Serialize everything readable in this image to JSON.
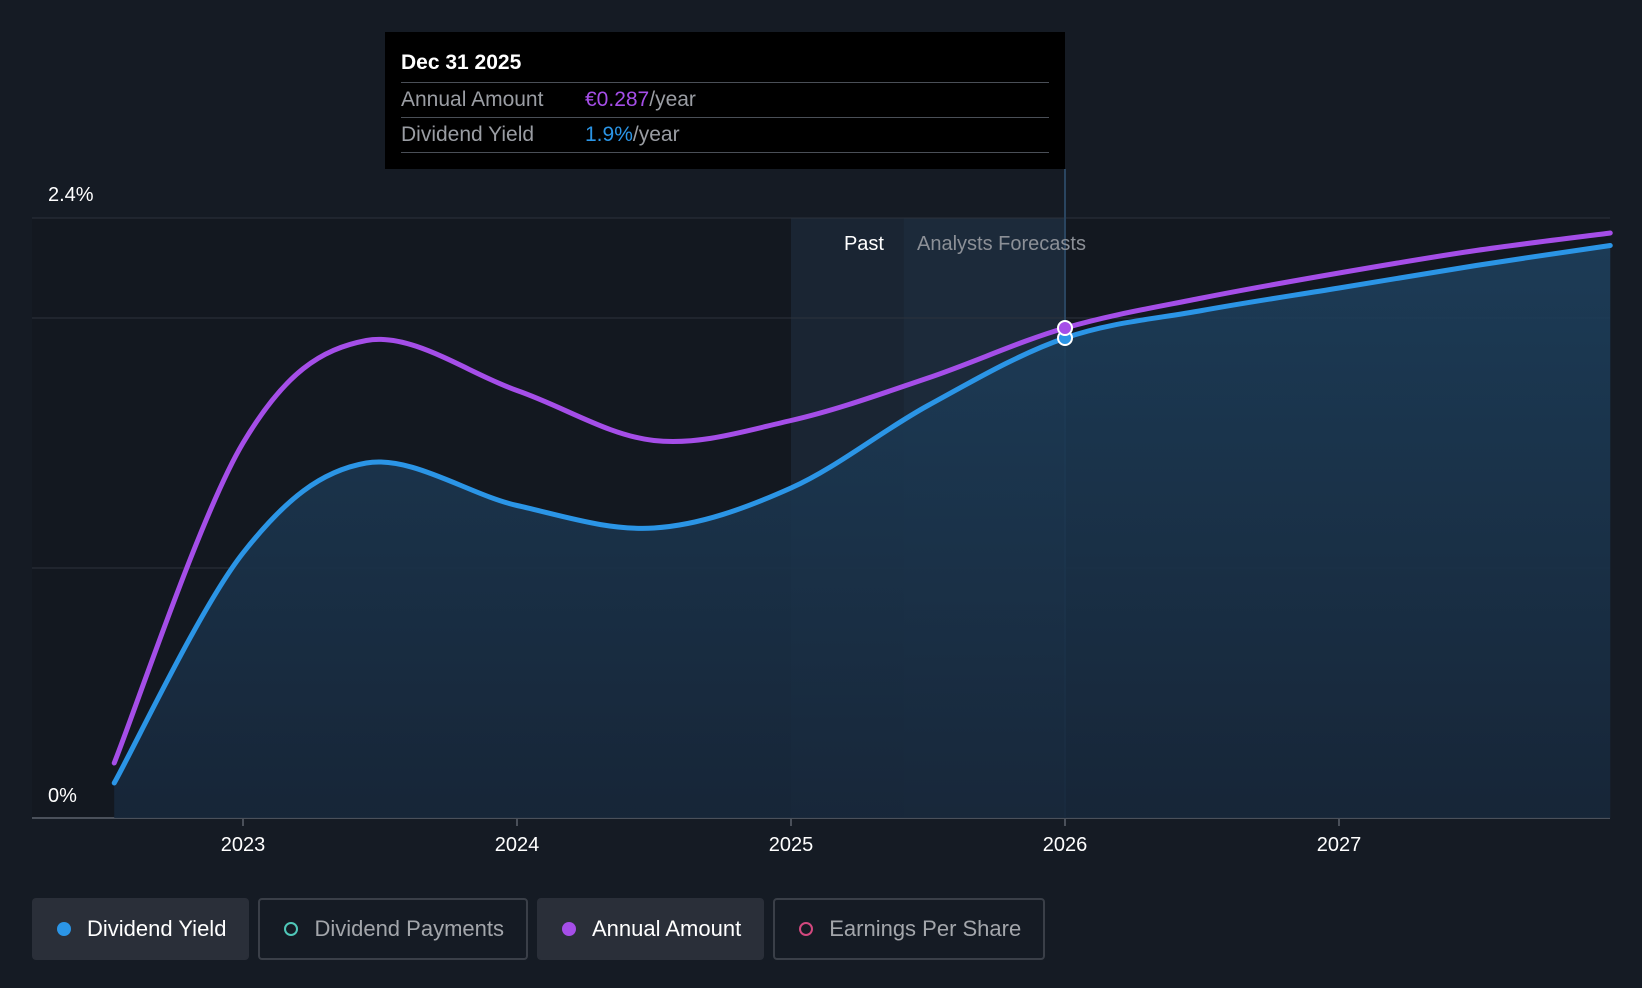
{
  "chart_data": {
    "type": "line",
    "x_ticks": [
      "2023",
      "2024",
      "2025",
      "2026",
      "2027"
    ],
    "y_ticks": [
      "0%",
      "2.4%"
    ],
    "ylim": [
      0,
      2.4
    ],
    "xlim": [
      2022.53,
      2027.99
    ],
    "grid": true,
    "region_labels": {
      "past": "Past",
      "forecast": "Analysts Forecasts"
    },
    "series": [
      {
        "name": "Dividend Yield",
        "color": "#2b95e6",
        "unit": "%",
        "x": [
          2022.53,
          2023.0,
          2023.45,
          2024.0,
          2024.5,
          2025.0,
          2025.5,
          2026.0,
          2026.5,
          2027.0,
          2027.5,
          2027.99
        ],
        "y": [
          0.14,
          1.06,
          1.42,
          1.25,
          1.16,
          1.32,
          1.65,
          1.92,
          2.03,
          2.12,
          2.21,
          2.29
        ]
      },
      {
        "name": "Annual Amount",
        "color": "#a54ee8",
        "unit": "€",
        "x": [
          2022.53,
          2023.0,
          2023.45,
          2024.0,
          2024.5,
          2025.0,
          2025.5,
          2026.0,
          2026.5,
          2027.0,
          2027.5,
          2027.99
        ],
        "y": [
          0.22,
          1.5,
          1.91,
          1.71,
          1.51,
          1.59,
          1.76,
          1.96,
          2.08,
          2.18,
          2.27,
          2.34
        ]
      }
    ],
    "highlight_x": 2026.0
  },
  "tooltip": {
    "date": "Dec 31 2025",
    "rows": [
      {
        "label": "Annual Amount",
        "value": "€0.287",
        "unit": "/year",
        "color": "#a54ee8"
      },
      {
        "label": "Dividend Yield",
        "value": "1.9%",
        "unit": "/year",
        "color": "#2b95e6"
      }
    ]
  },
  "legend": [
    {
      "label": "Dividend Yield",
      "color": "#2b95e6",
      "filled": true,
      "active": true
    },
    {
      "label": "Dividend Payments",
      "color": "#4fc7b8",
      "filled": false,
      "active": false
    },
    {
      "label": "Annual Amount",
      "color": "#a54ee8",
      "filled": true,
      "active": true
    },
    {
      "label": "Earnings Per Share",
      "color": "#d2487e",
      "filled": false,
      "active": false
    }
  ]
}
